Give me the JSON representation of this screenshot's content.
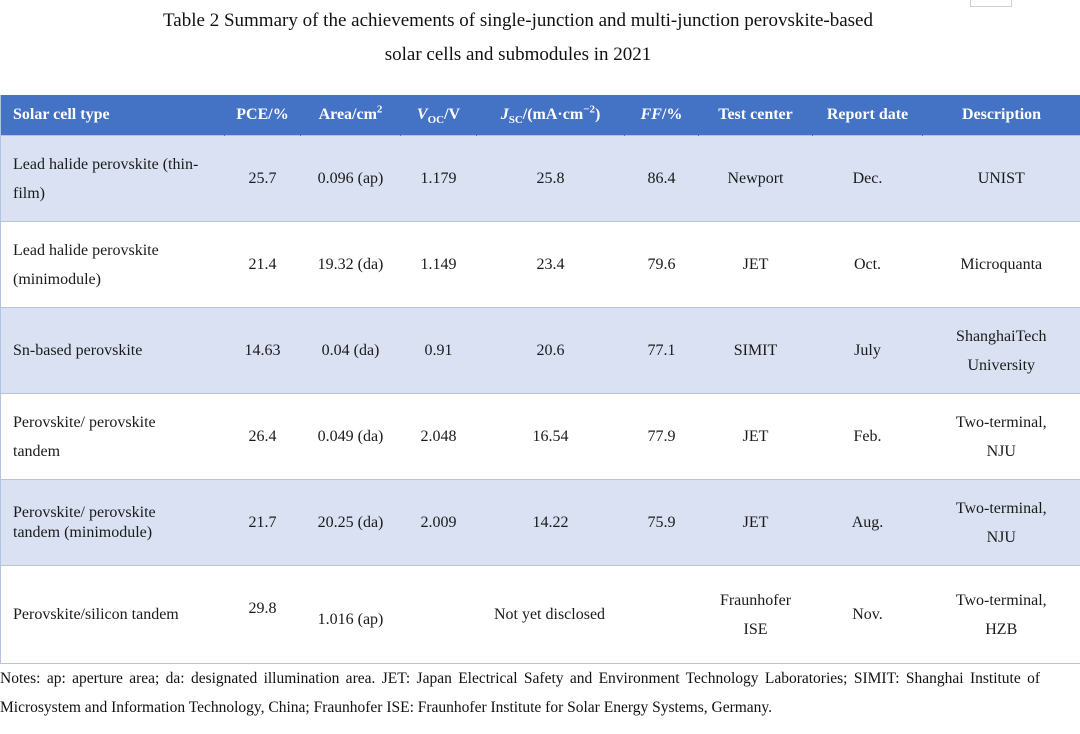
{
  "caption": {
    "line1": "Table 2 Summary of the achievements of single-junction and multi-junction perovskite-based",
    "line2": "solar cells and submodules in 2021"
  },
  "headers": {
    "type": "Solar cell type",
    "pce": "PCE/%",
    "area": "Area/cm",
    "area_sup": "2",
    "voc_v": "V",
    "voc_sub": "OC",
    "voc_unit": "/V",
    "jsc_j": "J",
    "jsc_sub": "SC",
    "jsc_unit": "/(mA·cm",
    "jsc_sup": "−2",
    "jsc_close": ")",
    "ff": "FF",
    "ff_unit": "/%",
    "center": "Test center",
    "date": "Report date",
    "desc": "Description"
  },
  "rows": [
    {
      "type_l1": "Lead halide perovskite (thin-",
      "type_l2": "film)",
      "pce": "25.7",
      "area": "0.096 (ap)",
      "voc": "1.179",
      "jsc": "25.8",
      "ff": "86.4",
      "center_l1": "Newport",
      "center_l2": "",
      "date": "Dec.",
      "desc_l1": "UNIST",
      "desc_l2": ""
    },
    {
      "type_l1": "Lead halide perovskite",
      "type_l2": "(minimodule)",
      "pce": "21.4",
      "area": "19.32 (da)",
      "voc": "1.149",
      "jsc": "23.4",
      "ff": "79.6",
      "center_l1": "JET",
      "center_l2": "",
      "date": "Oct.",
      "desc_l1": "Microquanta",
      "desc_l2": ""
    },
    {
      "type_l1": "Sn-based perovskite",
      "type_l2": "",
      "pce": "14.63",
      "area": "0.04 (da)",
      "voc": "0.91",
      "jsc": "20.6",
      "ff": "77.1",
      "center_l1": "SIMIT",
      "center_l2": "",
      "date": "July",
      "desc_l1": "ShanghaiTech",
      "desc_l2": "University"
    },
    {
      "type_l1": "Perovskite/ perovskite",
      "type_l2": "tandem",
      "pce": "26.4",
      "area": "0.049 (da)",
      "voc": "2.048",
      "jsc": "16.54",
      "ff": "77.9",
      "center_l1": "JET",
      "center_l2": "",
      "date": "Feb.",
      "desc_l1": "Two-terminal,",
      "desc_l2": "NJU"
    },
    {
      "type_l1": "Perovskite/ perovskite",
      "type_l2": "tandem (minimodule)",
      "pce": "21.7",
      "area": "20.25 (da)",
      "voc": "2.009",
      "jsc": "14.22",
      "ff": "75.9",
      "center_l1": "JET",
      "center_l2": "",
      "date": "Aug.",
      "desc_l1": "Two-terminal,",
      "desc_l2": "NJU"
    },
    {
      "type_l1": "Perovskite/silicon tandem",
      "type_l2": "",
      "pce": "29.8",
      "area": "1.016 (ap)",
      "jsc_merged": "Not yet disclosed",
      "center_l1": "Fraunhofer",
      "center_l2": "ISE",
      "date": "Nov.",
      "desc_l1": "Two-terminal,",
      "desc_l2": "HZB"
    }
  ],
  "notes": "Notes: ap: aperture area; da: designated illumination area. JET: Japan Electrical Safety and Environment Technology Laboratories; SIMIT: Shanghai Institute of Microsystem and Information Technology, China; Fraunhofer ISE: Fraunhofer Institute for Solar Energy Systems, Germany.",
  "colors": {
    "header_bg": "#4472c4",
    "shade_bg": "#d9e1f2",
    "border": "#b4c3e0"
  }
}
